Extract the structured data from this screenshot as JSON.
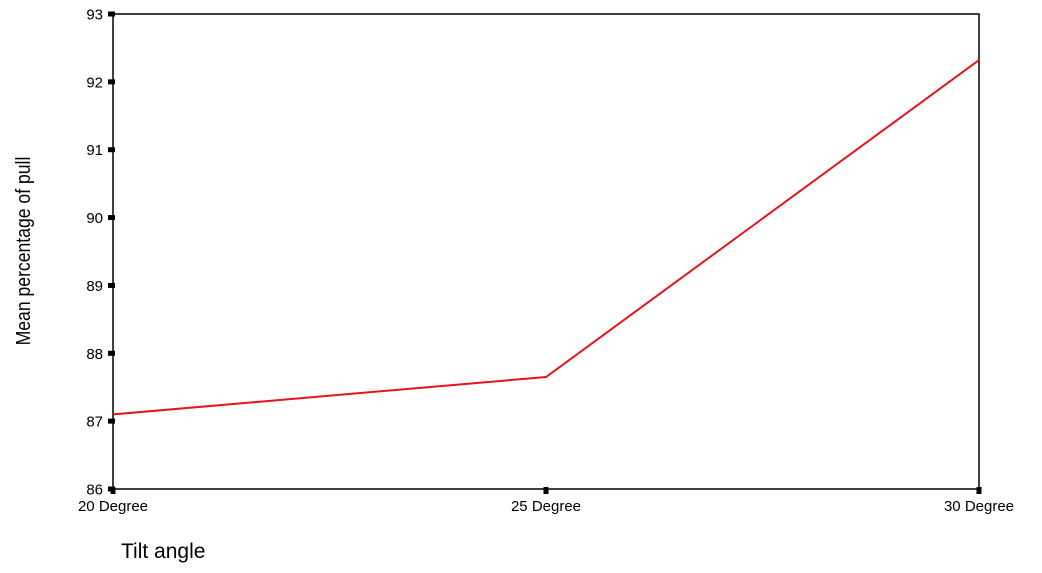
{
  "chart_data": {
    "type": "line",
    "title": "",
    "xlabel": "Tilt angle",
    "ylabel": "Mean percentage of pull",
    "categories": [
      "20 Degree",
      "25 Degree",
      "30 Degree"
    ],
    "series": [
      {
        "values": [
          87.1,
          87.65,
          92.32
        ],
        "color": "#e8141c"
      }
    ],
    "ylim": [
      86,
      93
    ],
    "yticks": [
      "86",
      "87",
      "88",
      "89",
      "90",
      "91",
      "92",
      "93"
    ],
    "grid": false,
    "legend": "none"
  }
}
